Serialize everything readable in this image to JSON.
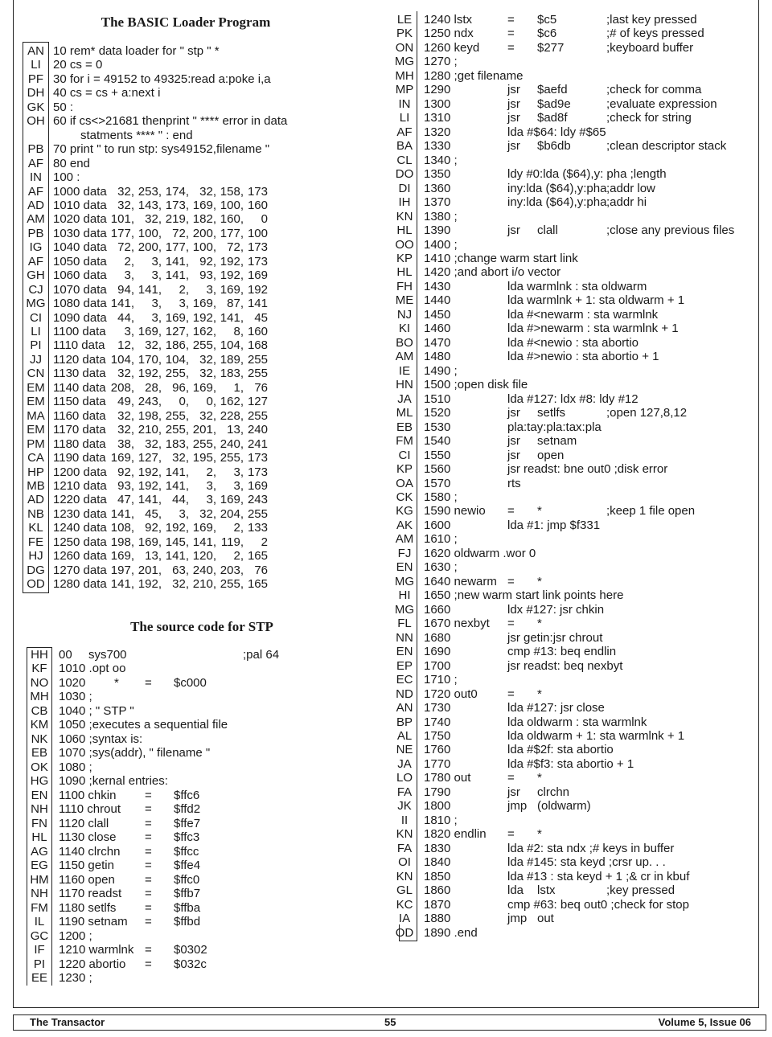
{
  "loader": {
    "title": "The BASIC Loader Program",
    "rows": [
      {
        "k": "AN",
        "a": "10 rem* data loader for \" stp \" *"
      },
      {
        "k": "LI",
        "a": "20 cs = 0"
      },
      {
        "k": "PF",
        "a": "30 for i = 49152 to 49325:read a:poke i,a"
      },
      {
        "k": "DH",
        "a": "40 cs = cs + a:next i"
      },
      {
        "k": "GK",
        "a": "50 :"
      },
      {
        "k": "OH",
        "a": "60 if cs<>21681 thenprint \" **** error in data"
      },
      {
        "k": "",
        "cont": "statments **** \" : end"
      },
      {
        "k": "PB",
        "a": "70 print \" to run stp: sys49152,filename \""
      },
      {
        "k": "AF",
        "a": "80 end"
      },
      {
        "k": "IN",
        "a": "100 :"
      },
      {
        "k": "AF",
        "a": "1000 data",
        "v": [
          "32",
          "253",
          "174",
          "32",
          "158",
          "173"
        ]
      },
      {
        "k": "AD",
        "a": "1010 data",
        "v": [
          "32",
          "143",
          "173",
          "169",
          "100",
          "160"
        ]
      },
      {
        "k": "AM",
        "a": "1020 data",
        "v": [
          "101",
          "32",
          "219",
          "182",
          "160",
          "0"
        ]
      },
      {
        "k": "PB",
        "a": "1030 data",
        "v": [
          "177",
          "100",
          "72",
          "200",
          "177",
          "100"
        ]
      },
      {
        "k": "IG",
        "a": "1040 data",
        "v": [
          "72",
          "200",
          "177",
          "100",
          "72",
          "173"
        ]
      },
      {
        "k": "AF",
        "a": "1050 data",
        "v": [
          "2",
          "3",
          "141",
          "92",
          "192",
          "173"
        ]
      },
      {
        "k": "GH",
        "a": "1060 data",
        "v": [
          "3",
          "3",
          "141",
          "93",
          "192",
          "169"
        ]
      },
      {
        "k": "CJ",
        "a": "1070 data",
        "v": [
          "94",
          "141",
          "2",
          "3",
          "169",
          "192"
        ]
      },
      {
        "k": "MG",
        "a": "1080 data",
        "v": [
          "141",
          "3",
          "3",
          "169",
          "87",
          "141"
        ]
      },
      {
        "k": "CI",
        "a": "1090 data",
        "v": [
          "44",
          "3",
          "169",
          "192",
          "141",
          "45"
        ]
      },
      {
        "k": "LI",
        "a": "1100 data",
        "v": [
          "3",
          "169",
          "127",
          "162",
          "8",
          "160"
        ]
      },
      {
        "k": "PI",
        "a": "1110 data",
        "v": [
          "12",
          "32",
          "186",
          "255",
          "104",
          "168"
        ]
      },
      {
        "k": "JJ",
        "a": "1120 data",
        "v": [
          "104",
          "170",
          "104",
          "32",
          "189",
          "255"
        ]
      },
      {
        "k": "CN",
        "a": "1130 data",
        "v": [
          "32",
          "192",
          "255",
          "32",
          "183",
          "255"
        ]
      },
      {
        "k": "EM",
        "a": "1140 data",
        "v": [
          "208",
          "28",
          "96",
          "169",
          "1",
          "76"
        ]
      },
      {
        "k": "EM",
        "a": "1150 data",
        "v": [
          "49",
          "243",
          "0",
          "0",
          "162",
          "127"
        ]
      },
      {
        "k": "MA",
        "a": "1160 data",
        "v": [
          "32",
          "198",
          "255",
          "32",
          "228",
          "255"
        ]
      },
      {
        "k": "EM",
        "a": "1170 data",
        "v": [
          "32",
          "210",
          "255",
          "201",
          "13",
          "240"
        ]
      },
      {
        "k": "PM",
        "a": "1180 data",
        "v": [
          "38",
          "32",
          "183",
          "255",
          "240",
          "241"
        ]
      },
      {
        "k": "CA",
        "a": "1190 data",
        "v": [
          "169",
          "127",
          "32",
          "195",
          "255",
          "173"
        ]
      },
      {
        "k": "HP",
        "a": "1200 data",
        "v": [
          "92",
          "192",
          "141",
          "2",
          "3",
          "173"
        ]
      },
      {
        "k": "MB",
        "a": "1210 data",
        "v": [
          "93",
          "192",
          "141",
          "3",
          "3",
          "169"
        ]
      },
      {
        "k": "AD",
        "a": "1220 data",
        "v": [
          "47",
          "141",
          "44",
          "3",
          "169",
          "243"
        ]
      },
      {
        "k": "NB",
        "a": "1230 data",
        "v": [
          "141",
          "45",
          "3",
          "32",
          "204",
          "255"
        ]
      },
      {
        "k": "KL",
        "a": "1240 data",
        "v": [
          "108",
          "92",
          "192",
          "169",
          "2",
          "133"
        ]
      },
      {
        "k": "FE",
        "a": "1250 data",
        "v": [
          "198",
          "169",
          "145",
          "141",
          "119",
          "2"
        ]
      },
      {
        "k": "HJ",
        "a": "1260 data",
        "v": [
          "169",
          "13",
          "141",
          "120",
          "2",
          "165"
        ]
      },
      {
        "k": "DG",
        "a": "1270 data",
        "v": [
          "197",
          "201",
          "63",
          "240",
          "203",
          "76"
        ]
      },
      {
        "k": "OD",
        "a": "1280 data",
        "v": [
          "141",
          "192",
          "32",
          "210",
          "255",
          "165"
        ]
      }
    ]
  },
  "source": {
    "title": "The source code for STP",
    "rows": [
      {
        "k": "HH",
        "a": "00",
        "s": "sys700",
        "d": ";pal 64"
      },
      {
        "k": "KF",
        "a": "1010 .opt oo"
      },
      {
        "k": "NO",
        "a": "1020",
        "m": "*",
        "b": "=",
        "c": "$c000"
      },
      {
        "k": "MH",
        "a": "1030 ;"
      },
      {
        "k": "CB",
        "a": "1040 ; \" STP \""
      },
      {
        "k": "KM",
        "a": "1050 ;executes a sequential file"
      },
      {
        "k": "NK",
        "a": "1060 ;syntax is:"
      },
      {
        "k": "EB",
        "a": "1070 ;sys(addr), \" filename \""
      },
      {
        "k": "OK",
        "a": "1080 ;"
      },
      {
        "k": "HG",
        "a": "1090 ;kernal entries:"
      },
      {
        "k": "EN",
        "a": "1100 chkin",
        "b": "=",
        "c": "$ffc6"
      },
      {
        "k": "NH",
        "a": "1110 chrout",
        "b": "=",
        "c": "$ffd2"
      },
      {
        "k": "FN",
        "a": "1120 clall",
        "b": "=",
        "c": "$ffe7"
      },
      {
        "k": "HL",
        "a": "1130 close",
        "b": "=",
        "c": "$ffc3"
      },
      {
        "k": "AG",
        "a": "1140 clrchn",
        "b": "=",
        "c": "$ffcc"
      },
      {
        "k": "EG",
        "a": "1150 getin",
        "b": "=",
        "c": "$ffe4"
      },
      {
        "k": "HM",
        "a": "1160 open",
        "b": "=",
        "c": "$ffc0"
      },
      {
        "k": "NH",
        "a": "1170 readst",
        "b": "=",
        "c": "$ffb7"
      },
      {
        "k": "FM",
        "a": "1180 setlfs",
        "b": "=",
        "c": "$ffba"
      },
      {
        "k": "IL",
        "a": "1190 setnam",
        "b": "=",
        "c": "$ffbd"
      },
      {
        "k": "GC",
        "a": "1200 ;"
      },
      {
        "k": "IF",
        "a": "1210 warmlnk",
        "b": "=",
        "c": "$0302"
      },
      {
        "k": "PI",
        "a": "1220 abortio",
        "b": "=",
        "c": "$032c"
      },
      {
        "k": "EE",
        "a": "1230 ;"
      }
    ]
  },
  "right": {
    "rows": [
      {
        "k": "LE",
        "a": "1240 lstx",
        "b": "=",
        "c": "$c5",
        "d": ";last key pressed"
      },
      {
        "k": "PK",
        "a": "1250 ndx",
        "b": "=",
        "c": "$c6",
        "d": ";# of keys pressed"
      },
      {
        "k": "ON",
        "a": "1260 keyd",
        "b": "=",
        "c": "$277",
        "d": ";keyboard buffer"
      },
      {
        "k": "MG",
        "a": "1270 ;"
      },
      {
        "k": "MH",
        "a": "1280 ;get filename"
      },
      {
        "k": "MP",
        "a": "1290",
        "b": "jsr",
        "c": "$aefd",
        "d": ";check for comma"
      },
      {
        "k": "IN",
        "a": "1300",
        "b": "jsr",
        "c": "$ad9e",
        "d": ";evaluate expression"
      },
      {
        "k": "LI",
        "a": "1310",
        "b": "jsr",
        "c": "$ad8f",
        "d": ";check for string"
      },
      {
        "k": "AF",
        "a": "1320",
        "b": "lda #$64: ldy #$65"
      },
      {
        "k": "BA",
        "a": "1330",
        "b": "jsr",
        "c": "$b6db",
        "d": ";clean descriptor stack"
      },
      {
        "k": "CL",
        "a": "1340 ;"
      },
      {
        "k": "DO",
        "a": "1350",
        "b": "ldy #0:lda ($64),y: pha ;length"
      },
      {
        "k": "DI",
        "a": "1360",
        "b": "iny:lda ($64),y:pha",
        "d": ";addr low"
      },
      {
        "k": "IH",
        "a": "1370",
        "b": "iny:lda ($64),y:pha",
        "d": ";addr hi"
      },
      {
        "k": "KN",
        "a": "1380 ;"
      },
      {
        "k": "HL",
        "a": "1390",
        "b": "jsr",
        "c": "clall",
        "d": ";close any previous files"
      },
      {
        "k": "OO",
        "a": "1400 ;"
      },
      {
        "k": "KP",
        "a": "1410 ;change warm start link"
      },
      {
        "k": "HL",
        "a": "1420 ;and abort i/o vector"
      },
      {
        "k": "FH",
        "a": "1430",
        "b": "lda warmlnk  : sta oldwarm"
      },
      {
        "k": "ME",
        "a": "1440",
        "b": "lda warmlnk + 1: sta oldwarm + 1"
      },
      {
        "k": "NJ",
        "a": "1450",
        "b": "lda #<newarm : sta warmlnk"
      },
      {
        "k": "KI",
        "a": "1460",
        "b": "lda #>newarm : sta warmlnk + 1"
      },
      {
        "k": "BO",
        "a": "1470",
        "b": "lda #<newio  : sta abortio"
      },
      {
        "k": "AM",
        "a": "1480",
        "b": "lda #>newio  : sta abortio + 1"
      },
      {
        "k": "IE",
        "a": "1490 ;"
      },
      {
        "k": "HN",
        "a": "1500 ;open disk file"
      },
      {
        "k": "JA",
        "a": "1510",
        "b": "lda #127: ldx #8: ldy #12"
      },
      {
        "k": "ML",
        "a": "1520",
        "b": "jsr",
        "c": "setlfs",
        "d": ";open 127,8,12"
      },
      {
        "k": "EB",
        "a": "1530",
        "b": "pla:tay:pla:tax:pla"
      },
      {
        "k": "FM",
        "a": "1540",
        "b": "jsr",
        "c": "setnam"
      },
      {
        "k": "CI",
        "a": "1550",
        "b": "jsr",
        "c": "open"
      },
      {
        "k": "KP",
        "a": "1560",
        "b": "jsr readst: bne out0 ;disk error"
      },
      {
        "k": "OA",
        "a": "1570",
        "b": "rts"
      },
      {
        "k": "CK",
        "a": "1580 ;"
      },
      {
        "k": "KG",
        "a": "1590 newio",
        "b": "=",
        "c": "*",
        "d": ";keep 1 file open"
      },
      {
        "k": "AK",
        "a": "1600",
        "b": "lda #1: jmp $f331"
      },
      {
        "k": "AM",
        "a": "1610 ;"
      },
      {
        "k": "FJ",
        "a": "1620 oldwarm .wor 0"
      },
      {
        "k": "EN",
        "a": "1630 ;"
      },
      {
        "k": "MG",
        "a": "1640 newarm",
        "b": "=",
        "c": "*"
      },
      {
        "k": "HI",
        "a": "1650 ;new warm start link points here"
      },
      {
        "k": "MG",
        "a": "1660",
        "b": "ldx #127: jsr chkin"
      },
      {
        "k": "FL",
        "a": "1670 nexbyt",
        "b": "=",
        "c": "*"
      },
      {
        "k": "NN",
        "a": "1680",
        "b": "jsr getin:jsr chrout"
      },
      {
        "k": "EN",
        "a": "1690",
        "b": "cmp #13: beq endlin"
      },
      {
        "k": "EP",
        "a": "1700",
        "b": "jsr readst: beq nexbyt"
      },
      {
        "k": "EC",
        "a": "1710 ;"
      },
      {
        "k": "ND",
        "a": "1720 out0",
        "b": "=",
        "c": "*"
      },
      {
        "k": "AN",
        "a": "1730",
        "b": "lda #127: jsr close"
      },
      {
        "k": "BP",
        "a": "1740",
        "b": "lda oldwarm  : sta warmlnk"
      },
      {
        "k": "AL",
        "a": "1750",
        "b": "lda oldwarm + 1: sta warmlnk + 1"
      },
      {
        "k": "NE",
        "a": "1760",
        "b": "lda #$2f: sta abortio"
      },
      {
        "k": "JA",
        "a": "1770",
        "b": "lda #$f3: sta abortio + 1"
      },
      {
        "k": "LO",
        "a": "1780 out",
        "b": "=",
        "c": "*"
      },
      {
        "k": "FA",
        "a": "1790",
        "b": "jsr",
        "c": "clrchn"
      },
      {
        "k": "JK",
        "a": "1800",
        "b": "jmp",
        "c": "(oldwarm)"
      },
      {
        "k": "II",
        "a": "1810 ;"
      },
      {
        "k": "KN",
        "a": "1820 endlin",
        "b": "=",
        "c": "*"
      },
      {
        "k": "FA",
        "a": "1830",
        "b": "lda #2: sta ndx ;# keys in buffer"
      },
      {
        "k": "OI",
        "a": "1840",
        "b": "lda #145: sta keyd   ;crsr up. . ."
      },
      {
        "k": "KN",
        "a": "1850",
        "b": "lda #13 : sta keyd + 1 ;& cr in kbuf"
      },
      {
        "k": "GL",
        "a": "1860",
        "b": "lda",
        "c": "lstx",
        "d": ";key pressed"
      },
      {
        "k": "KC",
        "a": "1870",
        "b": "cmp #63: beq out0 ;check for stop"
      },
      {
        "k": "IA",
        "a": "1880",
        "b": "jmp",
        "c": "out"
      },
      {
        "k": "OD",
        "a": "1890 .end"
      }
    ]
  },
  "footer": {
    "magazine": "The Transactor",
    "page": "55",
    "issue": "Volume 5, Issue 06"
  }
}
